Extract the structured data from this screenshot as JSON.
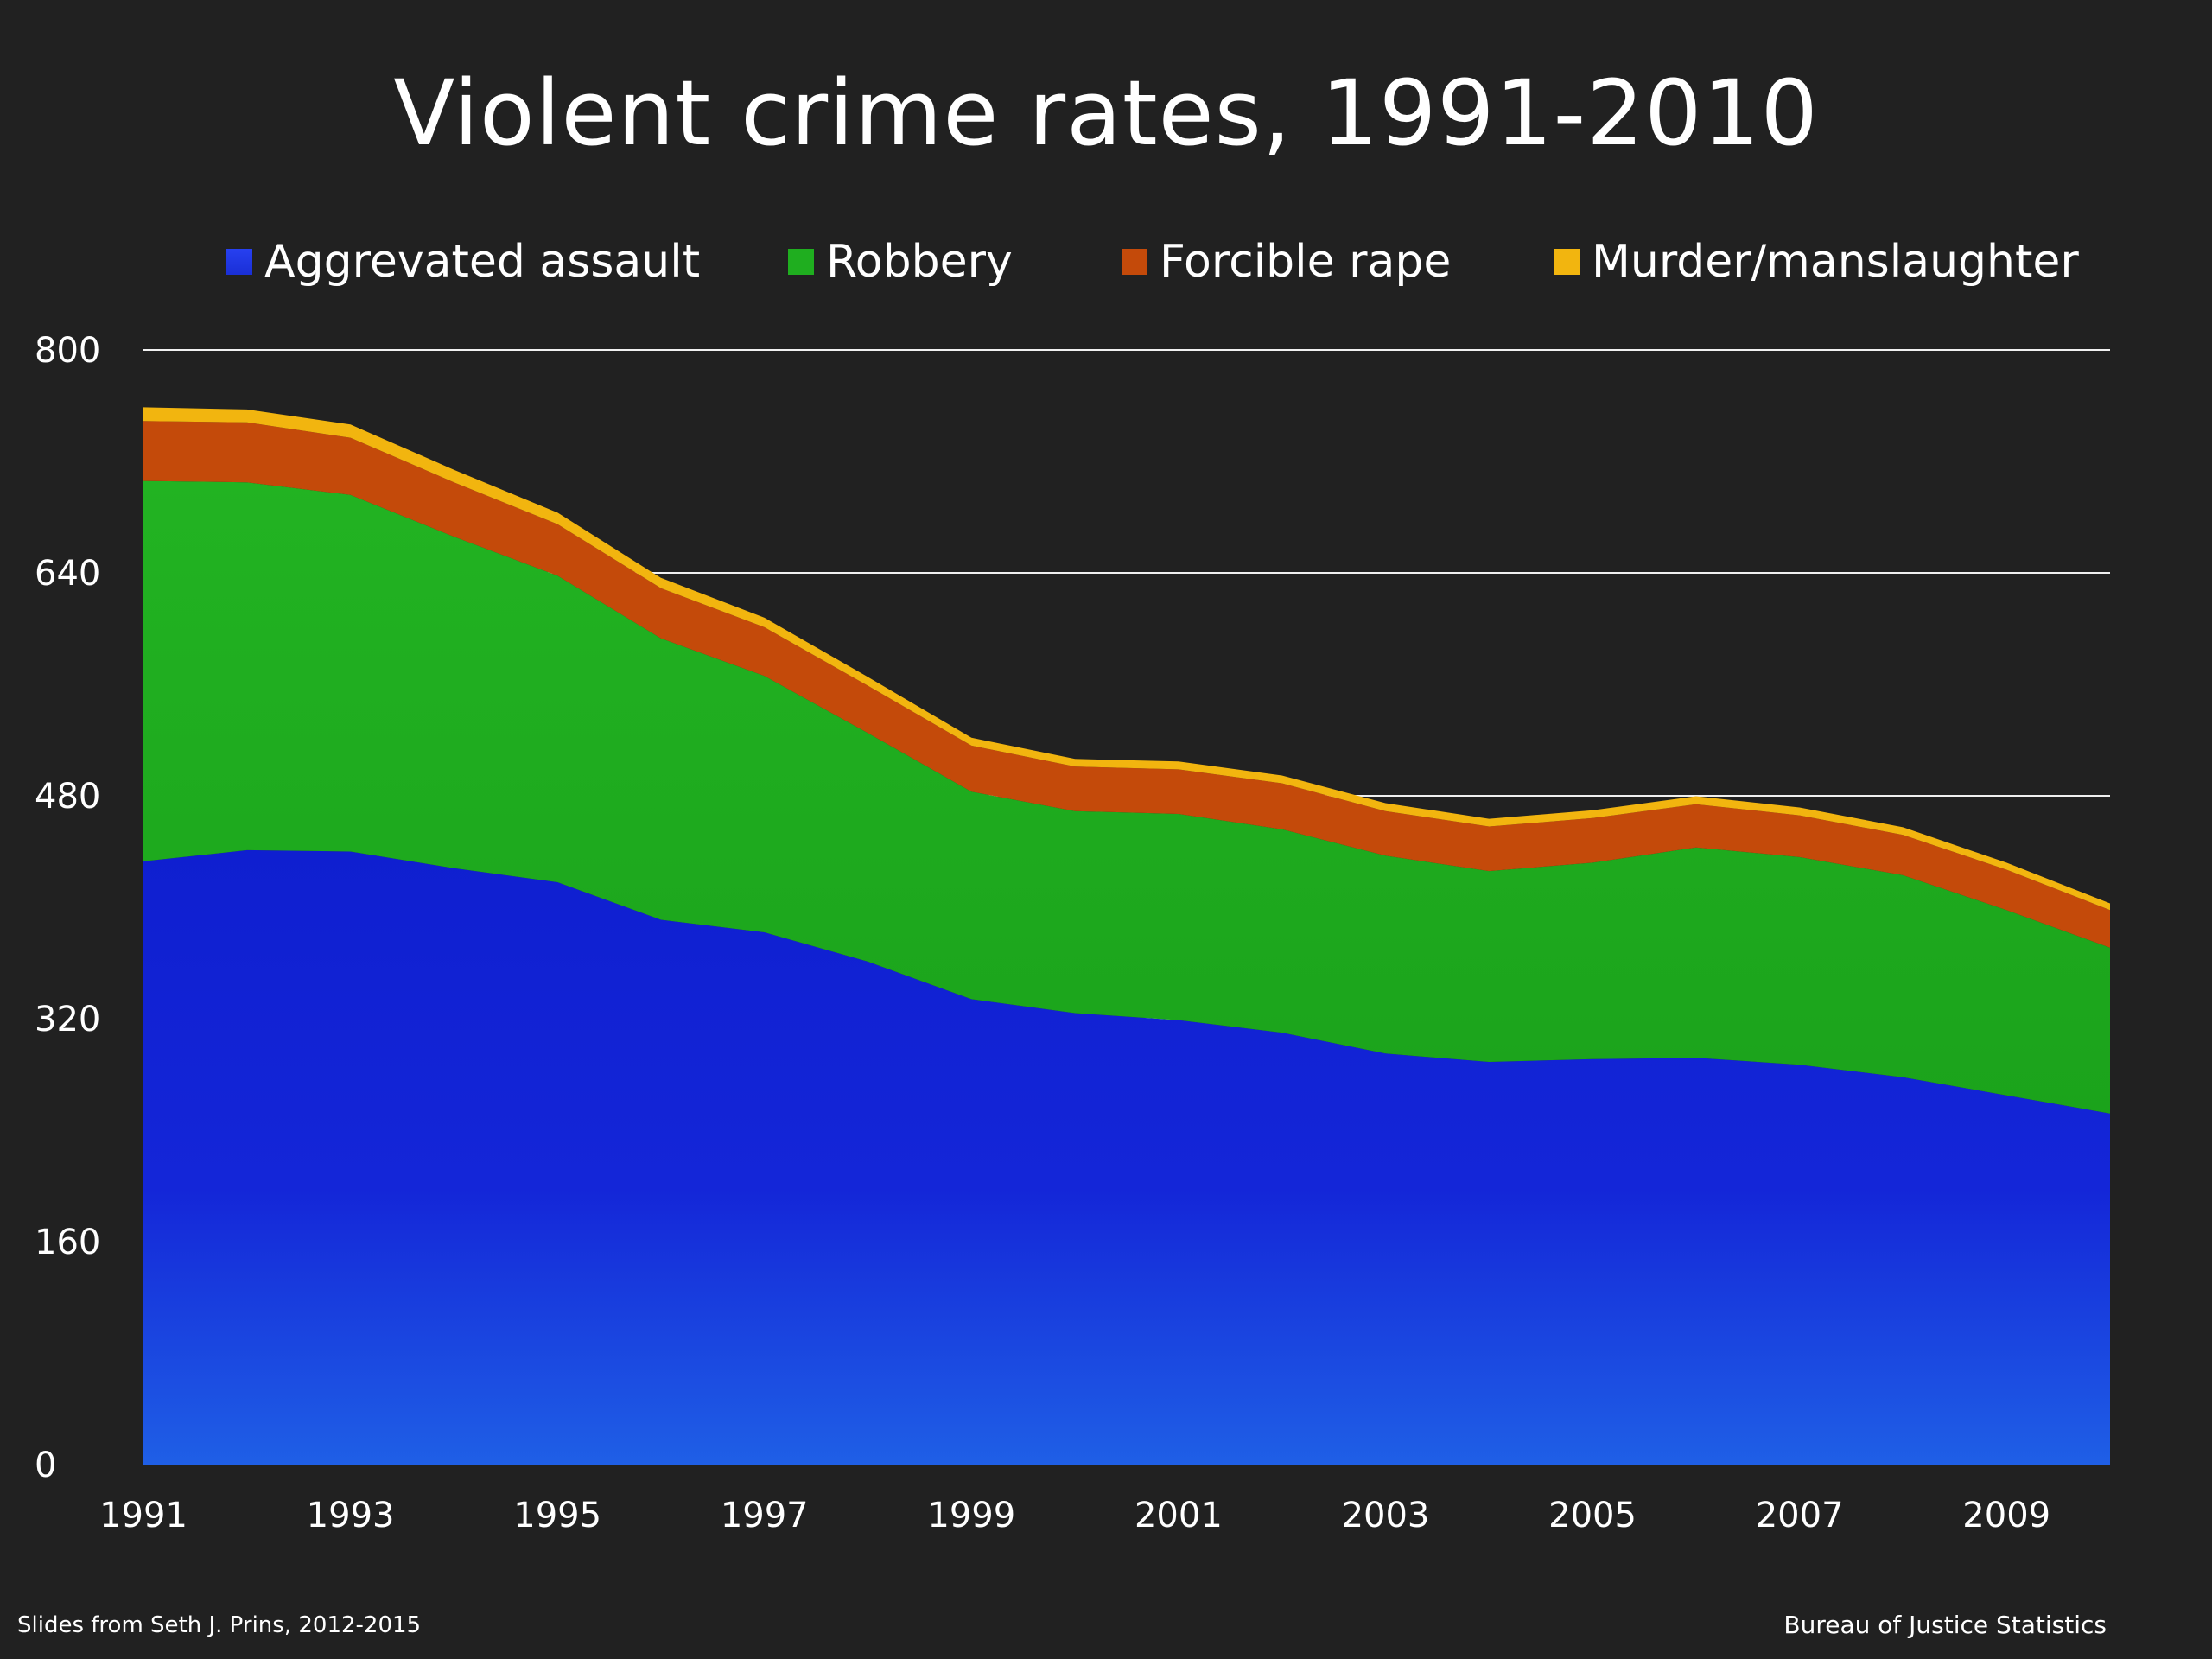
{
  "slide": {
    "title": "Violent crime rates, 1991-2010",
    "footer_left": "Slides from Seth J. Prins, 2012-2015",
    "footer_right": "Bureau of Justice Statistics"
  },
  "chart_data": {
    "type": "area",
    "stacked": true,
    "title": "Violent crime rates, 1991-2010",
    "xlabel": "",
    "ylabel": "",
    "x": [
      1991,
      1992,
      1993,
      1994,
      1995,
      1996,
      1997,
      1998,
      1999,
      2000,
      2001,
      2002,
      2003,
      2004,
      2005,
      2006,
      2007,
      2008,
      2009,
      2010
    ],
    "x_ticks": [
      "1991",
      "1993",
      "1995",
      "1997",
      "1999",
      "2001",
      "2003",
      "2005",
      "2007",
      "2009"
    ],
    "y_ticks": [
      "0",
      "160",
      "320",
      "480",
      "640",
      "800"
    ],
    "ylim": [
      0,
      800
    ],
    "grid": true,
    "legend_placement": "top",
    "series": [
      {
        "name": "Aggrevated assault",
        "color": "#1a2fd6",
        "values": [
          433,
          441,
          440,
          428,
          418,
          391,
          382,
          361,
          334,
          324,
          319,
          310,
          295,
          289,
          291,
          292,
          287,
          278,
          265,
          252
        ]
      },
      {
        "name": "Robbery",
        "color": "#1fae1f",
        "values": [
          273,
          264,
          256,
          238,
          220,
          202,
          184,
          164,
          149,
          145,
          148,
          146,
          142,
          137,
          141,
          151,
          149,
          145,
          133,
          119
        ]
      },
      {
        "name": "Forcible rape",
        "color": "#c44a0a",
        "values": [
          43,
          43,
          41,
          39,
          37,
          36,
          35,
          34,
          33,
          32,
          32,
          33,
          32,
          32,
          32,
          31,
          30,
          29,
          29,
          27
        ]
      },
      {
        "name": "Murder/manslaughter",
        "color": "#f2b50f",
        "values": [
          9.8,
          9.3,
          9.5,
          9.0,
          8.2,
          7.4,
          6.8,
          6.3,
          5.7,
          5.5,
          5.6,
          5.6,
          5.7,
          5.5,
          5.6,
          5.7,
          5.6,
          5.4,
          5.0,
          4.8
        ]
      }
    ]
  }
}
